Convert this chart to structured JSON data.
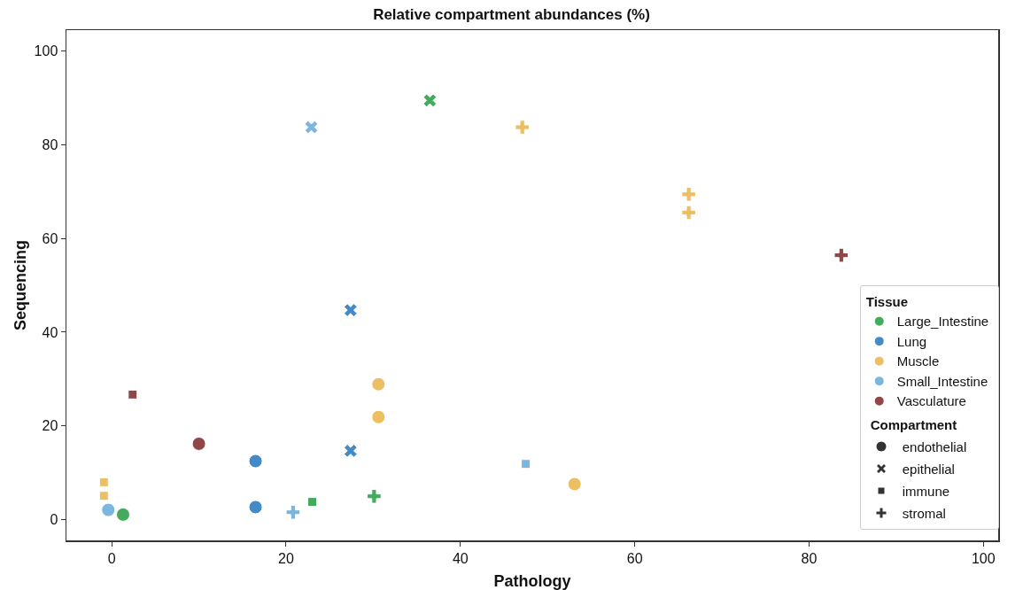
{
  "chart_data": {
    "type": "scatter",
    "title": "Relative compartment abundances (%)",
    "xlabel": "Pathology",
    "ylabel": "Sequencing",
    "xlim": [
      -5.2,
      101.7
    ],
    "ylim": [
      -4.4,
      104.4
    ],
    "xticks": [
      0,
      20,
      40,
      60,
      80,
      100
    ],
    "yticks": [
      0,
      20,
      40,
      60,
      80,
      100
    ],
    "grid": false,
    "legend": "bottom right",
    "legend_title": "Tissue",
    "annotations": [
      "Compartment",
      "endothelial",
      "epithelial",
      "immune",
      "stromal"
    ],
    "series": [
      {
        "name": "Large_Intestine",
        "color": "#3aa655",
        "marker": "circle",
        "x": [
          1.3
        ],
        "values": [
          1.1
        ]
      },
      {
        "color": "#3aa655",
        "marker": "x",
        "x": [
          36.5
        ],
        "values": [
          89.4
        ]
      },
      {
        "color": "#3aa655",
        "marker": "square",
        "x": [
          23.0
        ],
        "values": [
          3.8
        ]
      },
      {
        "color": "#3aa655",
        "marker": "cross",
        "x": [
          30.1
        ],
        "values": [
          5.0
        ]
      },
      {
        "name": "Lung",
        "color": "#3a84c4",
        "marker": "circle",
        "x": [
          16.5,
          16.5
        ],
        "values": [
          12.5,
          2.7
        ]
      },
      {
        "color": "#3a84c4",
        "marker": "x",
        "x": [
          27.4,
          27.4
        ],
        "values": [
          44.7,
          14.7
        ]
      },
      {
        "name": "Muscle",
        "color": "#ebbd5a",
        "marker": "circle",
        "x": [
          30.6,
          30.6,
          53.1
        ],
        "values": [
          28.9,
          21.9,
          7.6
        ]
      },
      {
        "color": "#ebbd5a",
        "marker": "square",
        "x": [
          -0.9,
          -0.9
        ],
        "values": [
          8.0,
          5.1
        ]
      },
      {
        "color": "#ebbd5a",
        "marker": "cross",
        "x": [
          47.1,
          66.2,
          66.2
        ],
        "values": [
          83.7,
          69.4,
          65.5
        ]
      },
      {
        "name": "Small_Intestine",
        "color": "#74b3de",
        "marker": "circle",
        "x": [
          -0.4
        ],
        "values": [
          2.1
        ]
      },
      {
        "color": "#74b3de",
        "marker": "x",
        "x": [
          22.9
        ],
        "values": [
          83.7
        ]
      },
      {
        "color": "#74b3de",
        "marker": "square",
        "x": [
          47.5
        ],
        "values": [
          11.9
        ]
      },
      {
        "color": "#74b3de",
        "marker": "cross",
        "x": [
          20.8
        ],
        "values": [
          1.6
        ]
      },
      {
        "name": "Vasculature",
        "color": "#8c3e3e",
        "marker": "circle",
        "x": [
          10.0
        ],
        "values": [
          16.2
        ]
      },
      {
        "color": "#8c3e3e",
        "marker": "square",
        "x": [
          2.4
        ],
        "values": [
          26.7
        ]
      },
      {
        "color": "#8c3e3e",
        "marker": "cross",
        "x": [
          83.7
        ],
        "values": [
          56.4
        ]
      }
    ]
  }
}
